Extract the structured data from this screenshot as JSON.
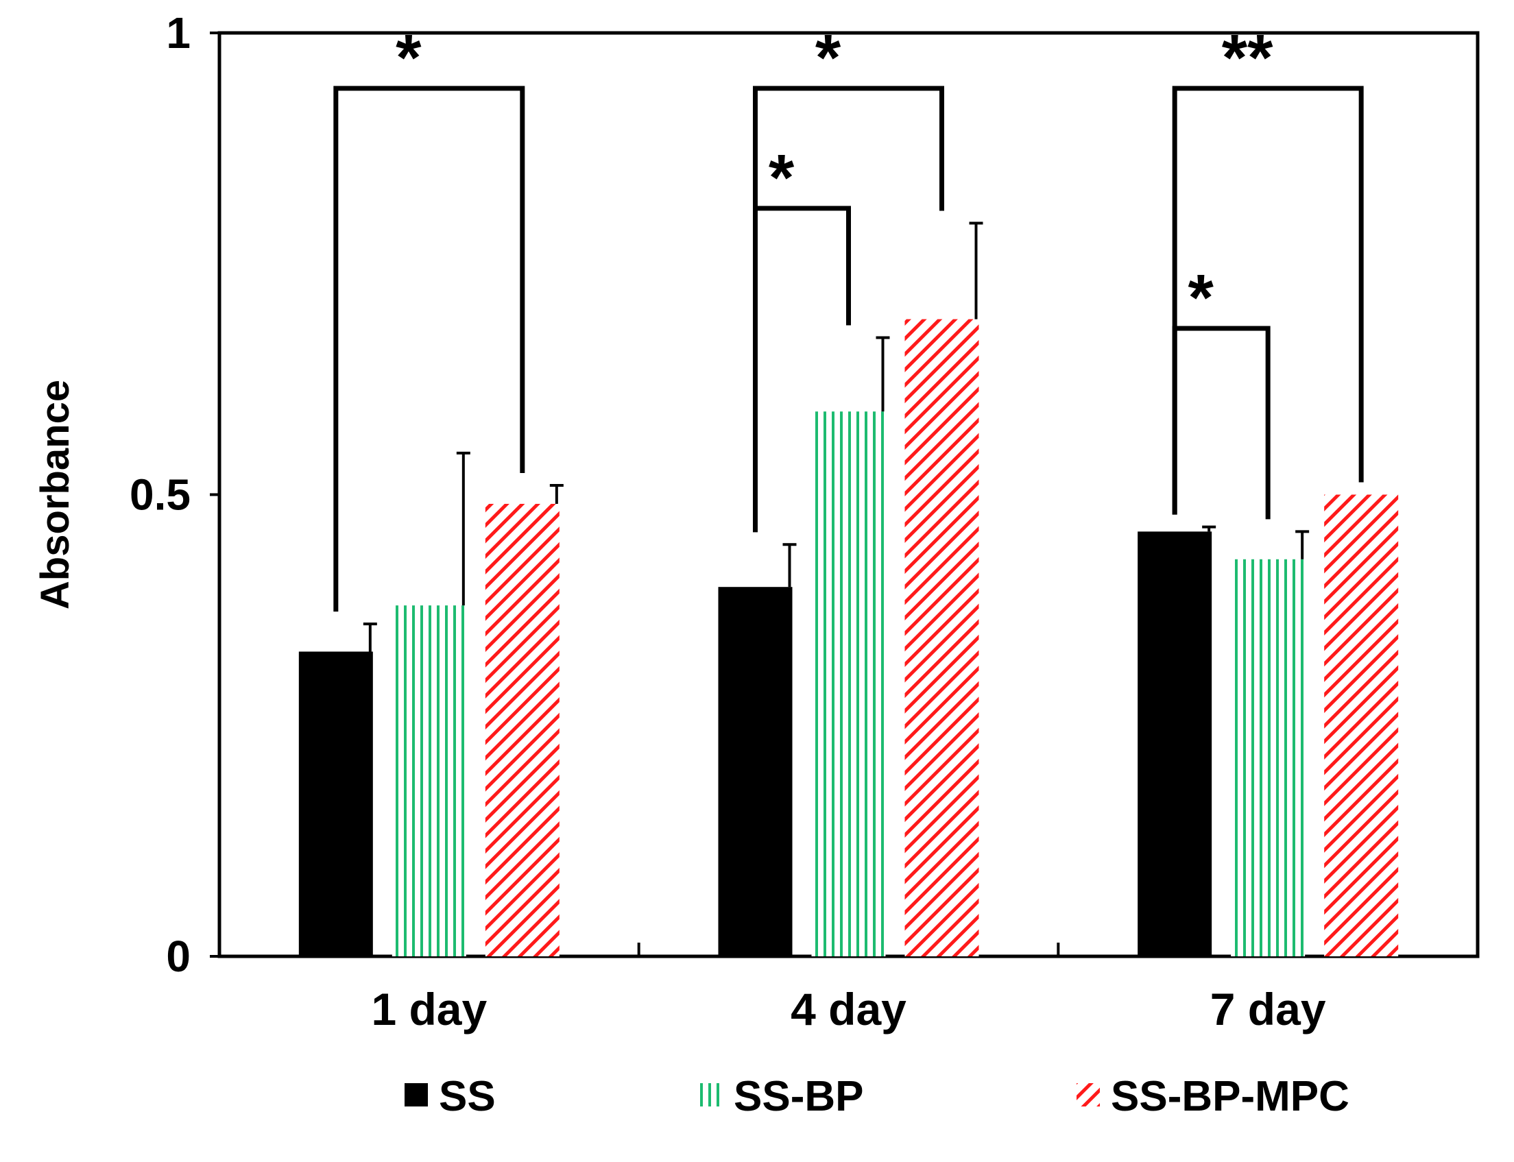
{
  "chart_data": {
    "type": "bar",
    "title": "",
    "xlabel": "",
    "ylabel": "Absorbance",
    "ylim": [
      0,
      1
    ],
    "yticks": [
      {
        "value": 0,
        "label": "0"
      },
      {
        "value": 0.5,
        "label": "0.5"
      },
      {
        "value": 1,
        "label": "1"
      }
    ],
    "grid": false,
    "categories": [
      "1 day",
      "4 day",
      "7 day"
    ],
    "series": [
      {
        "name": "SS",
        "color": "#000000",
        "pattern": "solid",
        "values": [
          0.33,
          0.4,
          0.46
        ],
        "errors": [
          0.03,
          0.046,
          0.005
        ]
      },
      {
        "name": "SS-BP",
        "color": "#1dbb70",
        "pattern": "vertical-lines",
        "values": [
          0.38,
          0.59,
          0.43
        ],
        "errors": [
          0.165,
          0.08,
          0.03
        ]
      },
      {
        "name": "SS-BP-MPC",
        "color": "#ff1a1a",
        "pattern": "diagonal-stripes",
        "values": [
          0.49,
          0.69,
          0.5
        ],
        "errors": [
          0.02,
          0.104,
          0.0
        ]
      }
    ],
    "significance": [
      {
        "category": 0,
        "from_series": 0,
        "to_series": 2,
        "level": 0.94,
        "label": "*"
      },
      {
        "category": 1,
        "from_series": 0,
        "to_series": 2,
        "level": 0.94,
        "label": "*"
      },
      {
        "category": 1,
        "from_series": 0,
        "to_series": 1,
        "level": 0.81,
        "label": "*"
      },
      {
        "category": 2,
        "from_series": 0,
        "to_series": 2,
        "level": 0.94,
        "label": "**"
      },
      {
        "category": 2,
        "from_series": 0,
        "to_series": 1,
        "level": 0.68,
        "label": "*"
      }
    ],
    "legend_position": "bottom"
  }
}
